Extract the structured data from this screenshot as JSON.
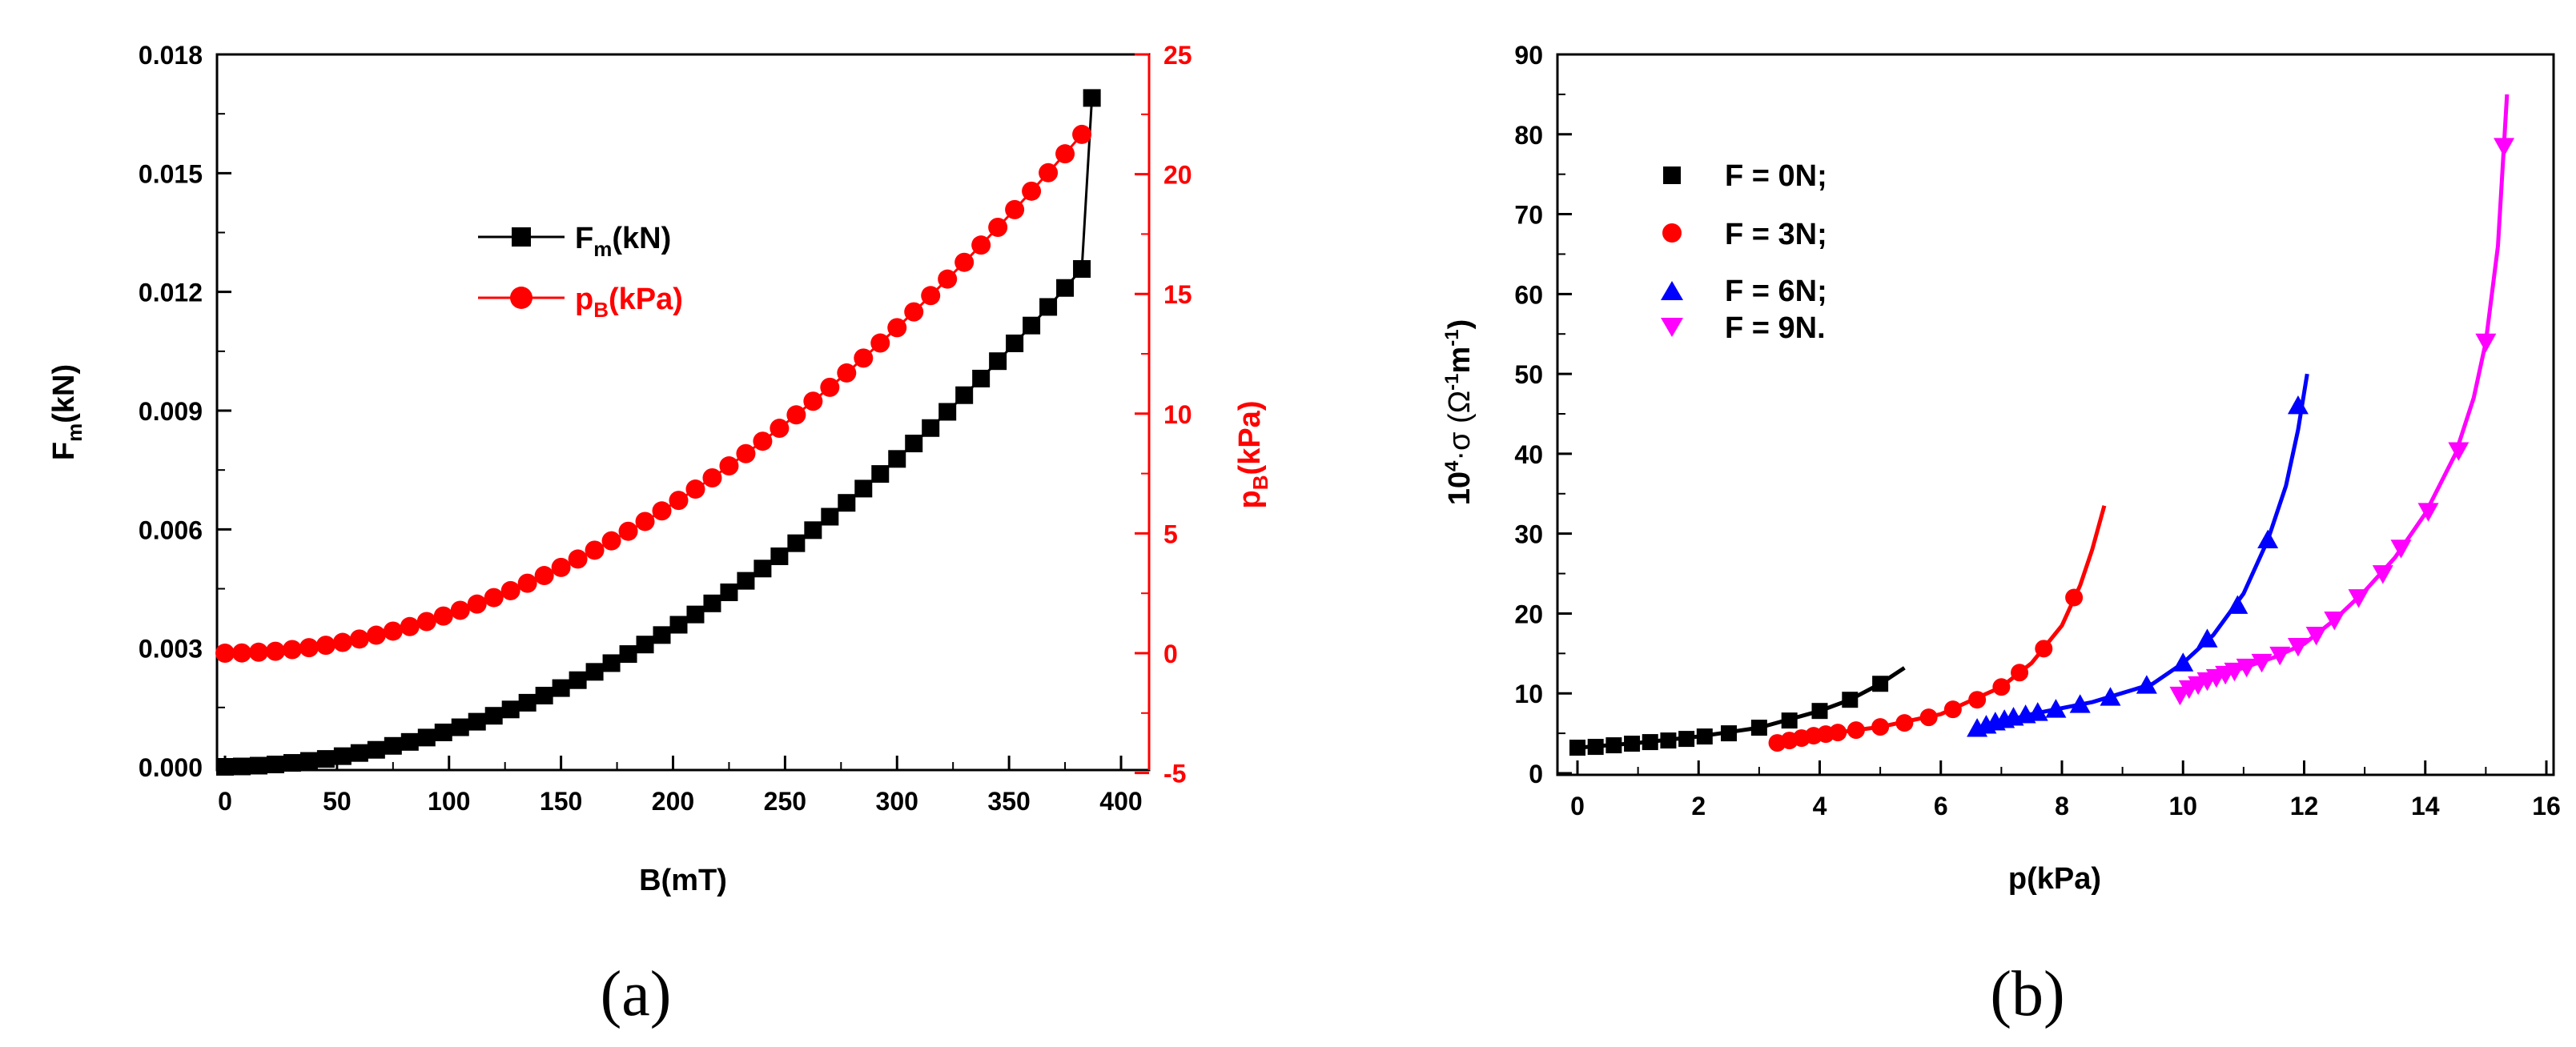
{
  "panels": [
    {
      "label": "(a)",
      "chart_data": {
        "type": "scatter",
        "xlabel": "B(mT)",
        "ylabel_left": "F",
        "ylabel_left_sub": "m",
        "ylabel_left_tail": "(kN)",
        "ylabel_right": "p",
        "ylabel_right_sub": "B",
        "ylabel_right_tail": "(kPa)",
        "xlim": [
          -5,
          405
        ],
        "xticks": [
          0,
          50,
          100,
          150,
          200,
          250,
          300,
          350,
          400
        ],
        "ylim_left": [
          -0.0005,
          0.018
        ],
        "yticks_left": [
          "0.000",
          "0.003",
          "0.006",
          "0.009",
          "0.012",
          "0.015",
          "0.018"
        ],
        "ylim_right": [
          -5,
          25
        ],
        "yticks_right": [
          -5,
          0,
          5,
          10,
          15,
          20,
          25
        ],
        "legend_position": "upper-left",
        "series": [
          {
            "name": "F",
            "name_sub": "m",
            "name_tail": "(kN)",
            "axis": "left",
            "color": "#000000",
            "marker": "square",
            "x": [
              0,
              7.5,
              15,
              22.5,
              30,
              37.5,
              45,
              52.5,
              60,
              67.5,
              75,
              82.5,
              90,
              97.5,
              105,
              112.5,
              120,
              127.5,
              135,
              142.5,
              150,
              157.5,
              165,
              172.5,
              180,
              187.5,
              195,
              202.5,
              210,
              217.5,
              225,
              232.5,
              240,
              247.5,
              255,
              262.5,
              270,
              277.5,
              285,
              292.5,
              300,
              307.5,
              315,
              322.5,
              330,
              337.5,
              345,
              352.5,
              360,
              367.5,
              375,
              382.5,
              387.0
            ],
            "y": [
              0.0,
              1e-05,
              3e-05,
              6e-05,
              0.0001,
              0.00015,
              0.0002,
              0.00027,
              0.00035,
              0.00043,
              0.00053,
              0.00063,
              0.00074,
              0.00087,
              0.001,
              0.00114,
              0.00129,
              0.00145,
              0.00162,
              0.0018,
              0.00199,
              0.00219,
              0.0024,
              0.00262,
              0.00285,
              0.00309,
              0.00333,
              0.00359,
              0.00385,
              0.00413,
              0.00441,
              0.0047,
              0.00501,
              0.00532,
              0.00565,
              0.00598,
              0.00632,
              0.00667,
              0.00703,
              0.0074,
              0.00778,
              0.00817,
              0.00856,
              0.00897,
              0.00939,
              0.00981,
              0.01025,
              0.0107,
              0.01115,
              0.01162,
              0.0121,
              0.01258,
              0.0169
            ]
          },
          {
            "name": "p",
            "name_sub": "B",
            "name_tail": "(kPa)",
            "axis": "right",
            "color": "#ff0000",
            "marker": "circle",
            "x": [
              0,
              7.5,
              15,
              22.5,
              30,
              37.5,
              45,
              52.5,
              60,
              67.5,
              75,
              82.5,
              90,
              97.5,
              105,
              112.5,
              120,
              127.5,
              135,
              142.5,
              150,
              157.5,
              165,
              172.5,
              180,
              187.5,
              195,
              202.5,
              210,
              217.5,
              225,
              232.5,
              240,
              247.5,
              255,
              262.5,
              270,
              277.5,
              285,
              292.5,
              300,
              307.5,
              315,
              322.5,
              330,
              337.5,
              345,
              352.5,
              360,
              367.5,
              375,
              382.5
            ],
            "y": [
              0.0,
              0.01,
              0.04,
              0.08,
              0.15,
              0.23,
              0.33,
              0.45,
              0.59,
              0.75,
              0.92,
              1.11,
              1.32,
              1.55,
              1.79,
              2.05,
              2.32,
              2.61,
              2.92,
              3.24,
              3.58,
              3.93,
              4.3,
              4.69,
              5.09,
              5.5,
              5.94,
              6.38,
              6.85,
              7.32,
              7.82,
              8.33,
              8.85,
              9.39,
              9.95,
              10.52,
              11.1,
              11.7,
              12.32,
              12.95,
              13.59,
              14.25,
              14.93,
              15.62,
              16.32,
              17.04,
              17.78,
              18.52,
              19.29,
              20.06,
              20.85,
              21.66
            ]
          }
        ]
      }
    },
    {
      "label": "(b)",
      "chart_data": {
        "type": "line",
        "xlabel": "p(kPa)",
        "ylabel": "10",
        "ylabel_exp": "4",
        "ylabel_mid": "·σ (Ω",
        "ylabel_exp2": "-1",
        "ylabel_mid2": "m",
        "ylabel_exp3": "-1",
        "ylabel_tail": ")",
        "xlim": [
          -0.3,
          16
        ],
        "xticks": [
          0,
          2,
          4,
          6,
          8,
          10,
          12,
          14,
          16
        ],
        "ylim": [
          0,
          90
        ],
        "yticks": [
          0,
          10,
          20,
          30,
          40,
          50,
          60,
          70,
          80,
          90
        ],
        "legend_position": "upper-left",
        "series": [
          {
            "name": "F = 0N;",
            "color": "#000000",
            "marker": "square",
            "x": [
              0.0,
              0.3,
              0.6,
              0.9,
              1.2,
              1.5,
              1.8,
              2.1,
              2.5,
              3.0,
              3.5,
              4.0,
              4.5,
              5.0
            ],
            "y": [
              3.2,
              3.3,
              3.5,
              3.7,
              3.9,
              4.1,
              4.3,
              4.6,
              5.0,
              5.7,
              6.6,
              7.8,
              9.2,
              11.2
            ],
            "curve_x": [
              0.0,
              1.0,
              2.0,
              3.0,
              4.0,
              4.5,
              5.0,
              5.4
            ],
            "curve_y": [
              3.2,
              3.8,
              4.6,
              5.7,
              7.8,
              9.2,
              11.2,
              13.2
            ]
          },
          {
            "name": "F = 3N;",
            "color": "#ff0000",
            "marker": "circle",
            "x": [
              3.3,
              3.5,
              3.7,
              3.9,
              4.1,
              4.3,
              4.6,
              5.0,
              5.4,
              5.8,
              6.2,
              6.6,
              7.0,
              7.3,
              7.7,
              8.2
            ],
            "y": [
              3.8,
              4.1,
              4.4,
              4.7,
              4.9,
              5.1,
              5.4,
              5.8,
              6.3,
              7.0,
              8.0,
              9.2,
              10.8,
              12.6,
              15.6,
              22.0
            ],
            "curve_x": [
              3.3,
              4.0,
              5.0,
              6.0,
              7.0,
              7.5,
              8.0,
              8.3,
              8.5,
              8.7
            ],
            "curve_y": [
              3.8,
              4.8,
              5.8,
              7.4,
              10.8,
              13.8,
              18.5,
              23.5,
              28.0,
              33.5
            ]
          },
          {
            "name": "F = 6N;",
            "color": "#0000ff",
            "marker": "triangle-up",
            "x": [
              6.6,
              6.75,
              6.9,
              7.05,
              7.2,
              7.4,
              7.6,
              7.9,
              8.3,
              8.8,
              9.4,
              10.0,
              10.4,
              10.9,
              11.4,
              11.9
            ],
            "y": [
              5.6,
              6.0,
              6.4,
              6.7,
              7.0,
              7.3,
              7.6,
              8.0,
              8.6,
              9.5,
              11.0,
              13.8,
              16.8,
              21.0,
              29.2,
              46.0
            ],
            "curve_x": [
              6.6,
              7.5,
              8.5,
              9.5,
              10.0,
              10.5,
              11.0,
              11.4,
              11.7,
              11.9,
              12.05
            ],
            "curve_y": [
              5.6,
              7.4,
              8.9,
              11.2,
              13.8,
              17.3,
              22.5,
              29.2,
              36.0,
              43.0,
              50.0
            ]
          },
          {
            "name": "F = 9N.",
            "color": "#ff00ff",
            "marker": "triangle-down",
            "x": [
              9.95,
              10.1,
              10.25,
              10.4,
              10.55,
              10.7,
              10.85,
              11.05,
              11.3,
              11.6,
              11.9,
              12.2,
              12.5,
              12.9,
              13.3,
              13.6,
              14.05,
              14.55,
              15.0,
              15.3
            ],
            "y": [
              9.8,
              10.6,
              11.1,
              11.6,
              12.0,
              12.4,
              12.8,
              13.3,
              13.9,
              14.8,
              15.9,
              17.3,
              19.2,
              22.0,
              25.0,
              28.2,
              32.8,
              40.4,
              54.0,
              78.5
            ],
            "curve_x": [
              9.95,
              10.5,
              11.0,
              11.5,
              12.0,
              12.5,
              13.0,
              13.5,
              14.0,
              14.5,
              14.8,
              15.0,
              15.2,
              15.35
            ],
            "curve_y": [
              9.8,
              12.0,
              13.2,
              14.5,
              16.2,
              19.2,
              22.8,
              27.0,
              32.5,
              40.0,
              47.0,
              54.0,
              66.0,
              85.0
            ]
          }
        ]
      }
    }
  ]
}
